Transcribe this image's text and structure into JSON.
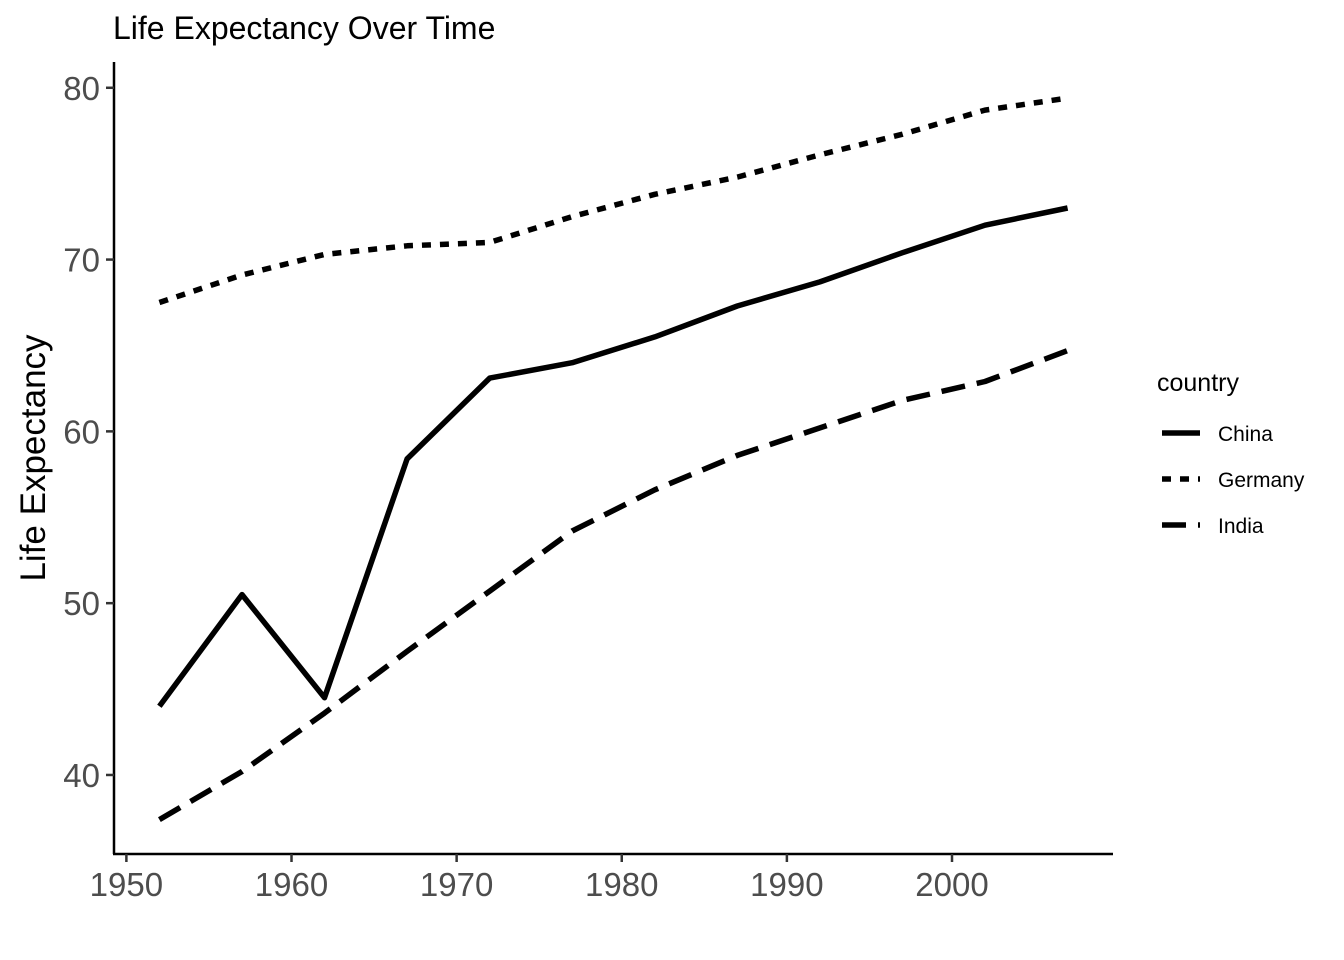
{
  "chart_data": {
    "type": "line",
    "title": "Life Expectancy Over Time",
    "xlabel": "",
    "ylabel": "Life Expectancy",
    "xlim": [
      1949.25,
      2009.75
    ],
    "ylim": [
      35.4,
      81.5
    ],
    "x_ticks": [
      1950,
      1960,
      1970,
      1980,
      1990,
      2000
    ],
    "y_ticks": [
      40,
      50,
      60,
      70,
      80
    ],
    "grid": false,
    "legend": {
      "title": "country",
      "position": "right"
    },
    "x": [
      1952,
      1957,
      1962,
      1967,
      1972,
      1977,
      1982,
      1987,
      1992,
      1997,
      2002,
      2007
    ],
    "series": [
      {
        "name": "China",
        "linetype": "solid",
        "color": "#000000",
        "values": [
          44.0,
          50.5,
          44.5,
          58.4,
          63.1,
          64.0,
          65.5,
          67.3,
          68.7,
          70.4,
          72.0,
          73.0
        ]
      },
      {
        "name": "Germany",
        "linetype": "dotted",
        "color": "#000000",
        "values": [
          67.5,
          69.1,
          70.3,
          70.8,
          71.0,
          72.5,
          73.8,
          74.8,
          76.1,
          77.3,
          78.7,
          79.4
        ]
      },
      {
        "name": "India",
        "linetype": "dashed",
        "color": "#000000",
        "values": [
          37.4,
          40.2,
          43.6,
          47.2,
          50.7,
          54.2,
          56.6,
          58.6,
          60.2,
          61.8,
          62.9,
          64.7
        ]
      }
    ]
  }
}
